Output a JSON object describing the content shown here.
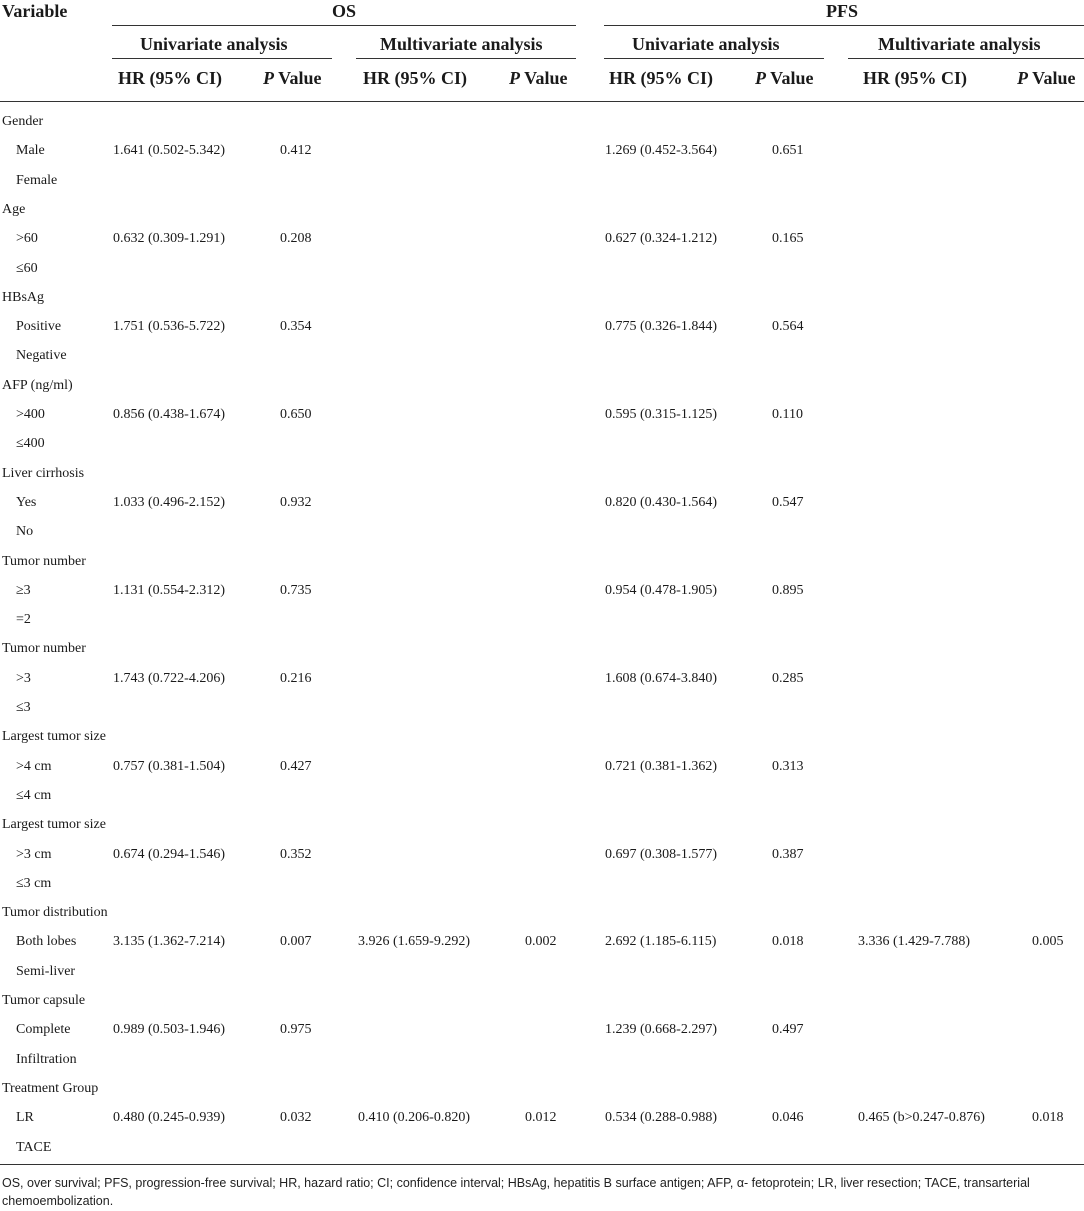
{
  "table": {
    "variable_header": "Variable",
    "groups": [
      {
        "label": "OS"
      },
      {
        "label": "PFS"
      }
    ],
    "subgroups": [
      "Univariate analysis",
      "Multivariate analysis",
      "Univariate analysis",
      "Multivariate analysis"
    ],
    "col_headers": {
      "hr": "HR (95% CI)",
      "p_italic": "P",
      "p_rest": " Value"
    },
    "sections": [
      {
        "label": "Gender",
        "rows": [
          {
            "label": "Male",
            "values": [
              "1.641 (0.502-5.342)",
              "0.412",
              "",
              "",
              "1.269 (0.452-3.564)",
              "0.651",
              "",
              ""
            ]
          },
          {
            "label": "Female",
            "values": [
              "",
              "",
              "",
              "",
              "",
              "",
              "",
              ""
            ]
          }
        ]
      },
      {
        "label": "Age",
        "rows": [
          {
            "label": ">60",
            "values": [
              "0.632 (0.309-1.291)",
              "0.208",
              "",
              "",
              "0.627 (0.324-1.212)",
              "0.165",
              "",
              ""
            ]
          },
          {
            "label": "≤60",
            "values": [
              "",
              "",
              "",
              "",
              "",
              "",
              "",
              ""
            ]
          }
        ]
      },
      {
        "label": "HBsAg",
        "rows": [
          {
            "label": "Positive",
            "values": [
              "1.751 (0.536-5.722)",
              "0.354",
              "",
              "",
              "0.775 (0.326-1.844)",
              "0.564",
              "",
              ""
            ]
          },
          {
            "label": "Negative",
            "values": [
              "",
              "",
              "",
              "",
              "",
              "",
              "",
              ""
            ]
          }
        ]
      },
      {
        "label": "AFP (ng/ml)",
        "rows": [
          {
            "label": ">400",
            "values": [
              "0.856 (0.438-1.674)",
              "0.650",
              "",
              "",
              "0.595 (0.315-1.125)",
              "0.110",
              "",
              ""
            ]
          },
          {
            "label": "≤400",
            "values": [
              "",
              "",
              "",
              "",
              "",
              "",
              "",
              ""
            ]
          }
        ]
      },
      {
        "label": "Liver cirrhosis",
        "rows": [
          {
            "label": "Yes",
            "values": [
              "1.033 (0.496-2.152)",
              "0.932",
              "",
              "",
              "0.820 (0.430-1.564)",
              "0.547",
              "",
              ""
            ]
          },
          {
            "label": "No",
            "values": [
              "",
              "",
              "",
              "",
              "",
              "",
              "",
              ""
            ]
          }
        ]
      },
      {
        "label": "Tumor number",
        "rows": [
          {
            "label": "≥3",
            "values": [
              "1.131 (0.554-2.312)",
              "0.735",
              "",
              "",
              "0.954 (0.478-1.905)",
              "0.895",
              "",
              ""
            ]
          },
          {
            "label": "=2",
            "values": [
              "",
              "",
              "",
              "",
              "",
              "",
              "",
              ""
            ]
          }
        ]
      },
      {
        "label": "Tumor number",
        "rows": [
          {
            "label": ">3",
            "values": [
              "1.743 (0.722-4.206)",
              "0.216",
              "",
              "",
              "1.608 (0.674-3.840)",
              "0.285",
              "",
              ""
            ]
          },
          {
            "label": "≤3",
            "values": [
              "",
              "",
              "",
              "",
              "",
              "",
              "",
              ""
            ]
          }
        ]
      },
      {
        "label": "Largest tumor size",
        "rows": [
          {
            "label": ">4 cm",
            "values": [
              "0.757 (0.381-1.504)",
              "0.427",
              "",
              "",
              "0.721 (0.381-1.362)",
              "0.313",
              "",
              ""
            ]
          },
          {
            "label": "≤4 cm",
            "values": [
              "",
              "",
              "",
              "",
              "",
              "",
              "",
              ""
            ]
          }
        ]
      },
      {
        "label": "Largest tumor size",
        "rows": [
          {
            "label": ">3 cm",
            "values": [
              "0.674 (0.294-1.546)",
              "0.352",
              "",
              "",
              "0.697 (0.308-1.577)",
              "0.387",
              "",
              ""
            ]
          },
          {
            "label": "≤3 cm",
            "values": [
              "",
              "",
              "",
              "",
              "",
              "",
              "",
              ""
            ]
          }
        ]
      },
      {
        "label": "Tumor distribution",
        "rows": [
          {
            "label": "Both lobes",
            "values": [
              "3.135 (1.362-7.214)",
              "0.007",
              "3.926 (1.659-9.292)",
              "0.002",
              "2.692 (1.185-6.115)",
              "0.018",
              "3.336 (1.429-7.788)",
              "0.005"
            ]
          },
          {
            "label": "Semi-liver",
            "values": [
              "",
              "",
              "",
              "",
              "",
              "",
              "",
              ""
            ]
          }
        ]
      },
      {
        "label": "Tumor capsule",
        "rows": [
          {
            "label": "Complete",
            "values": [
              "0.989 (0.503-1.946)",
              "0.975",
              "",
              "",
              "1.239 (0.668-2.297)",
              "0.497",
              "",
              ""
            ]
          },
          {
            "label": "Infiltration",
            "values": [
              "",
              "",
              "",
              "",
              "",
              "",
              "",
              ""
            ]
          }
        ]
      },
      {
        "label": "Treatment Group",
        "rows": [
          {
            "label": "LR",
            "values": [
              "0.480 (0.245-0.939)",
              "0.032",
              "0.410 (0.206-0.820)",
              "0.012",
              "0.534 (0.288-0.988)",
              "0.046",
              "0.465 (b>0.247-0.876)",
              "0.018"
            ]
          },
          {
            "label": "TACE",
            "values": [
              "",
              "",
              "",
              "",
              "",
              "",
              "",
              ""
            ]
          }
        ]
      }
    ]
  },
  "footnote": "OS, over survival; PFS, progression-free survival; HR, hazard ratio; CI; confidence interval; HBsAg, hepatitis B surface antigen; AFP, α- fetoprotein; LR, liver resection; TACE, transarterial chemoembolization."
}
